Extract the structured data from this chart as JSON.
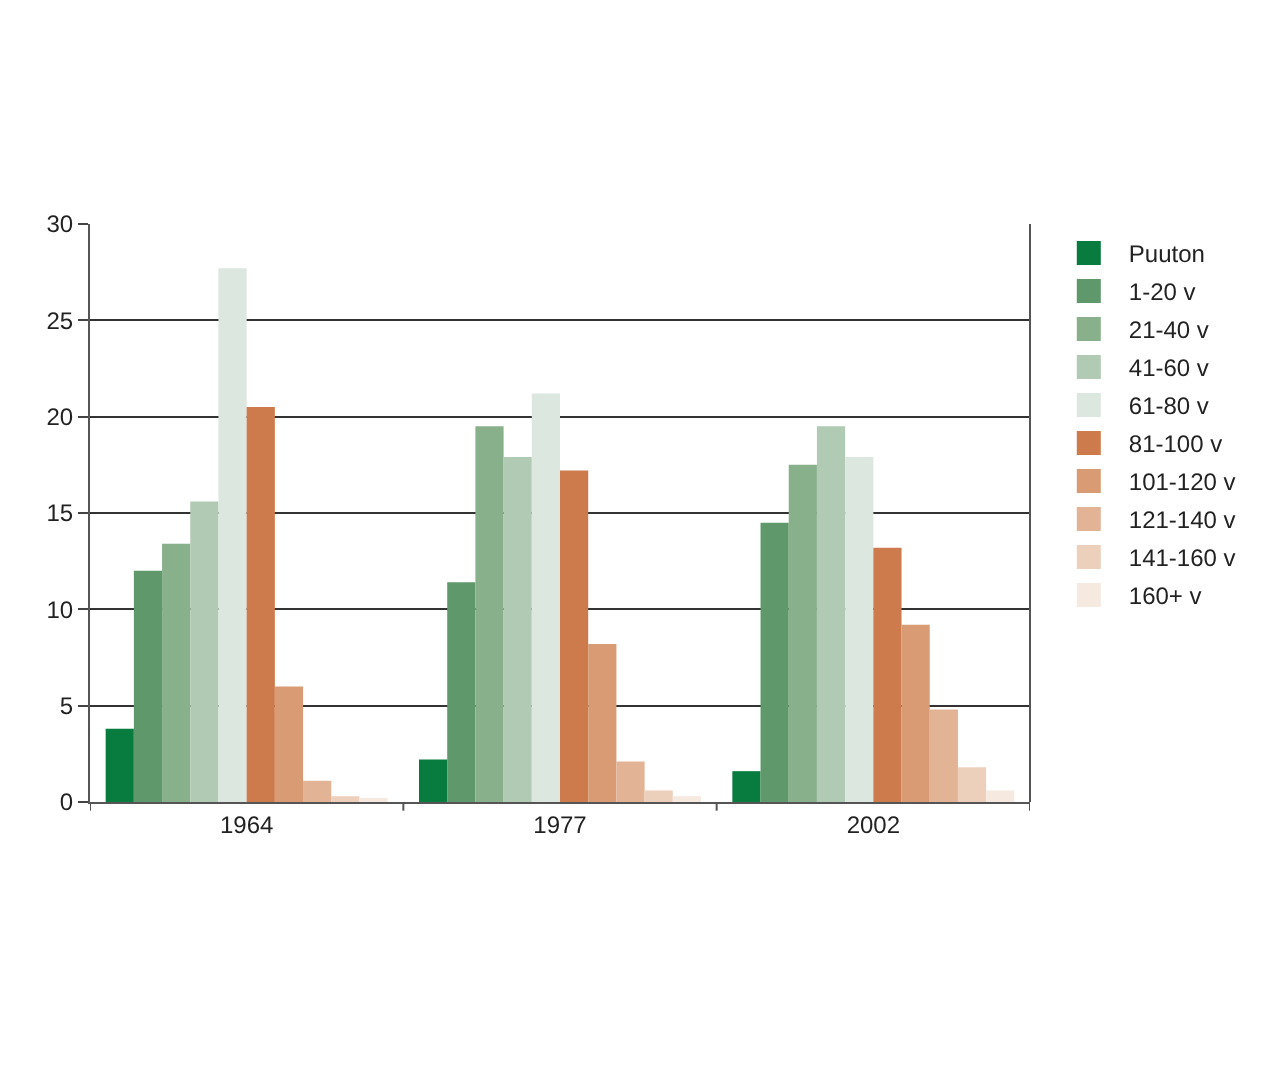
{
  "chart_data": {
    "type": "bar",
    "categories": [
      "1964",
      "1977",
      "2002"
    ],
    "series": [
      {
        "name": "Puuton",
        "color": "#077c3e",
        "values": [
          3.8,
          2.2,
          1.6
        ]
      },
      {
        "name": "1-20 v",
        "color": "#5f996b",
        "values": [
          12.0,
          11.4,
          14.5
        ]
      },
      {
        "name": "21-40 v",
        "color": "#88b08b",
        "values": [
          13.4,
          19.5,
          17.5
        ]
      },
      {
        "name": "41-60 v",
        "color": "#b1cab3",
        "values": [
          15.6,
          17.9,
          19.5
        ]
      },
      {
        "name": "61-80 v",
        "color": "#dce7df",
        "values": [
          27.7,
          21.2,
          17.9
        ]
      },
      {
        "name": "81-100 v",
        "color": "#cd7b4c",
        "values": [
          20.5,
          17.2,
          13.2
        ]
      },
      {
        "name": "101-120 v",
        "color": "#d89b74",
        "values": [
          6.0,
          8.2,
          9.2
        ]
      },
      {
        "name": "121-140 v",
        "color": "#e2b395",
        "values": [
          1.1,
          2.1,
          4.8
        ]
      },
      {
        "name": "141-160 v",
        "color": "#edd0bc",
        "values": [
          0.3,
          0.6,
          1.8
        ]
      },
      {
        "name": "160+ v",
        "color": "#f6e9e0",
        "values": [
          0.2,
          0.3,
          0.6
        ]
      }
    ],
    "ylim": [
      0,
      30
    ],
    "yticks": [
      0,
      5,
      10,
      15,
      20,
      25,
      30
    ],
    "grid": "y",
    "legend": "right"
  }
}
